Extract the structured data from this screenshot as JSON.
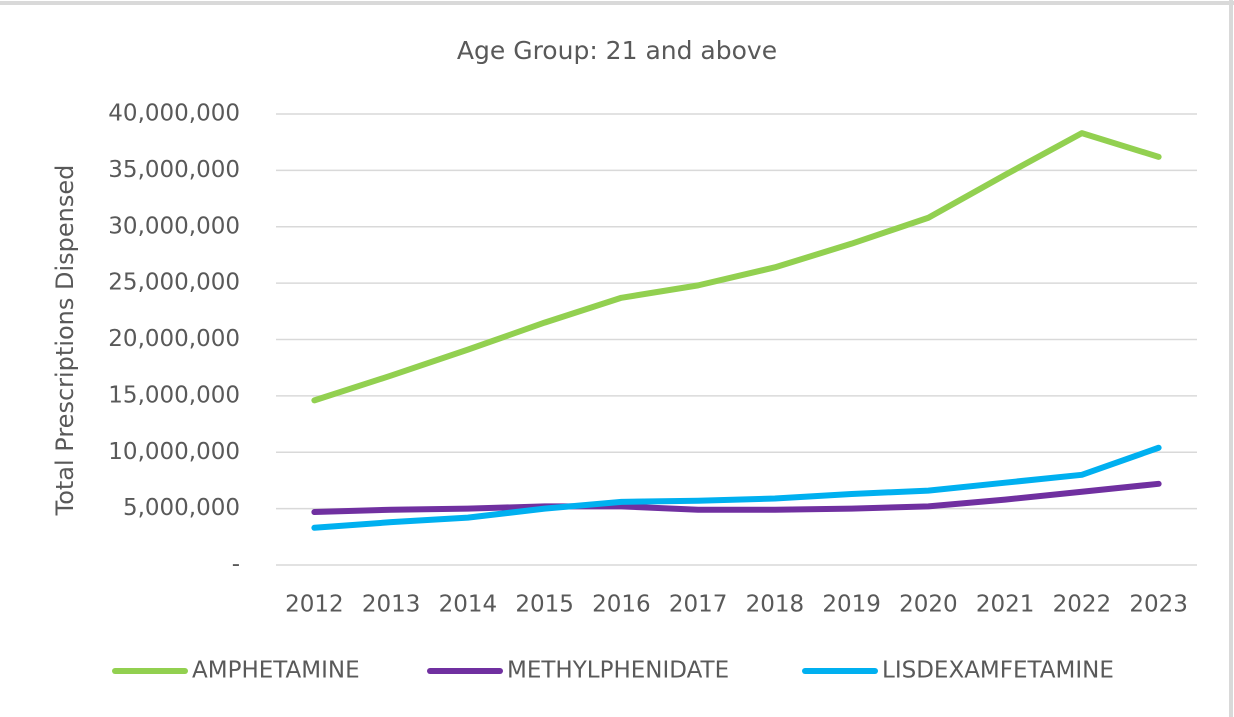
{
  "chart_data": {
    "type": "line",
    "title": "Age Group: 21 and above",
    "y_label": "Total Prescriptions Dispensed",
    "categories": [
      "2012",
      "2013",
      "2014",
      "2015",
      "2016",
      "2017",
      "2018",
      "2019",
      "2020",
      "2021",
      "2022",
      "2023"
    ],
    "series": [
      {
        "name": "AMPHETAMINE",
        "color": "#92d050",
        "values": [
          14600000,
          16800000,
          19100000,
          21500000,
          23700000,
          24800000,
          26400000,
          28500000,
          30800000,
          34600000,
          38300000,
          36200000
        ]
      },
      {
        "name": "METHYLPHENIDATE",
        "color": "#7030a0",
        "values": [
          4700000,
          4900000,
          5000000,
          5200000,
          5200000,
          4900000,
          4900000,
          5000000,
          5200000,
          5800000,
          6500000,
          7200000
        ]
      },
      {
        "name": "LISDEXAMFETAMINE",
        "color": "#00b0f0",
        "values": [
          3300000,
          3800000,
          4200000,
          5000000,
          5600000,
          5700000,
          5900000,
          6300000,
          6600000,
          7300000,
          8000000,
          10400000
        ]
      }
    ],
    "ylim": [
      0,
      40000000
    ],
    "yticks": [
      {
        "value": 0,
        "label": "-"
      },
      {
        "value": 5000000,
        "label": "5,000,000"
      },
      {
        "value": 10000000,
        "label": "10,000,000"
      },
      {
        "value": 15000000,
        "label": "15,000,000"
      },
      {
        "value": 20000000,
        "label": "20,000,000"
      },
      {
        "value": 25000000,
        "label": "25,000,000"
      },
      {
        "value": 30000000,
        "label": "30,000,000"
      },
      {
        "value": 35000000,
        "label": "35,000,000"
      },
      {
        "value": 40000000,
        "label": "40,000,000"
      }
    ],
    "grid": true,
    "legend": "bottom"
  }
}
